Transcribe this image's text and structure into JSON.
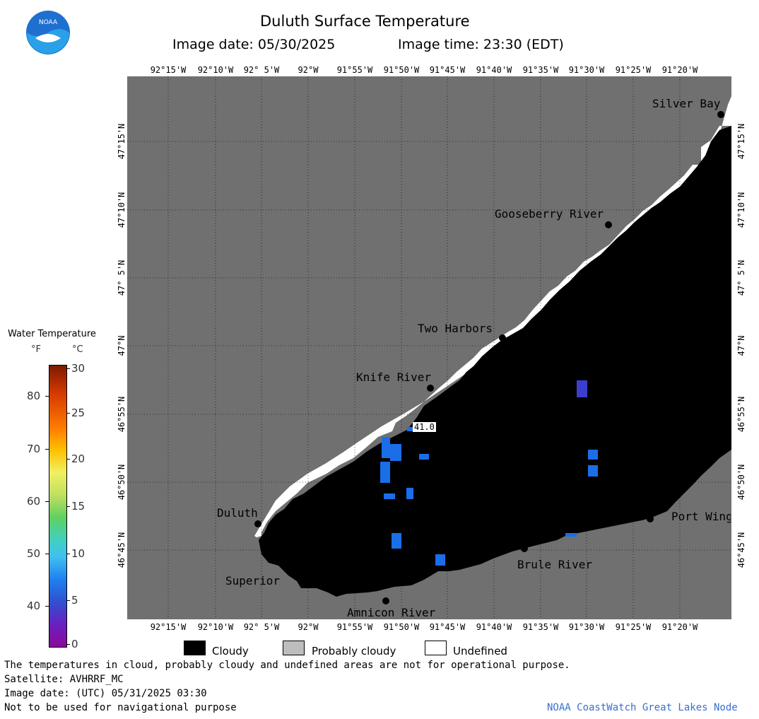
{
  "header": {
    "title": "Duluth Surface Temperature",
    "image_date": "Image date: 05/30/2025",
    "image_time": "Image time: 23:30 (EDT)"
  },
  "map": {
    "lon_labels": [
      "92°15'W",
      "92°10'W",
      "92° 5'W",
      "92°W",
      "91°55'W",
      "91°50'W",
      "91°45'W",
      "91°40'W",
      "91°35'W",
      "91°30'W",
      "91°25'W",
      "91°20'W"
    ],
    "lat_labels": [
      "47°15'N",
      "47°10'N",
      "47° 5'N",
      "47°N",
      "46°55'N",
      "46°50'N",
      "46°45'N"
    ],
    "places": {
      "silver_bay": "Silver Bay",
      "gooseberry": "Gooseberry River",
      "two_harbors": "Two Harbors",
      "knife_river": "Knife River",
      "duluth": "Duluth",
      "superior": "Superior",
      "amnicon": "Amnicon River",
      "brule": "Brule River",
      "port_wing": "Port Wing"
    },
    "temp_label": "41.0",
    "colors": {
      "land": "#707070",
      "cloud": "#000000",
      "undefined": "#ffffff",
      "water_cold": "#1a6fe8",
      "water_colder": "#3b3fd0"
    }
  },
  "colorbar": {
    "title": "Water Temperature",
    "unit_f": "°F",
    "unit_c": "°C",
    "f_ticks": [
      "80",
      "70",
      "60",
      "50",
      "40"
    ],
    "c_ticks": [
      "30",
      "25",
      "20",
      "15",
      "10",
      "5",
      "0"
    ]
  },
  "legend": {
    "cloudy": "Cloudy",
    "probably_cloudy": "Probably cloudy",
    "undefined": "Undefined"
  },
  "footer": {
    "note1": "The temperatures in cloud, probably cloudy and undefined areas are not for operational purpose.",
    "satellite": "Satellite: AVHRRF_MC",
    "utc": "Image date: (UTC) 05/31/2025  03:30",
    "nav": "Not to be used for navigational purpose",
    "credit": "NOAA CoastWatch Great Lakes Node",
    "logo_text": "NOAA"
  }
}
